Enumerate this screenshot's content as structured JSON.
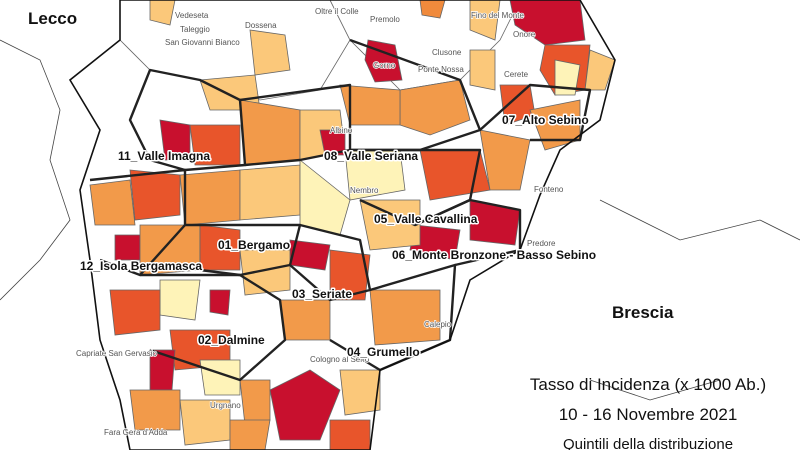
{
  "regions": [
    "Lecco",
    "Brescia"
  ],
  "districts": [
    "11_Valle Imagna",
    "08_Valle Seriana",
    "07_Alto Sebino",
    "05_Valle Cavallina",
    "01_Bergamo",
    "06_Monte Bronzone - Basso Sebino",
    "12_Isola Bergamasca",
    "03_Seriate",
    "02_Dalmine",
    "04_Grumello"
  ],
  "municipalities": [
    "Vedeseta",
    "Taleggio",
    "San Giovanni Bianco",
    "Dossena",
    "Oltre il Colle",
    "Gorno",
    "Premolo",
    "Clusone",
    "Ponte Nossa",
    "Onore",
    "Fino del Monte",
    "Cerete",
    "Albino",
    "Nembro",
    "Cologno al Serio",
    "Urgnano",
    "Fara Gera d'Adda",
    "Capriate San Gervasio",
    "Calepio",
    "Fonteno",
    "Predore"
  ],
  "legend": {
    "title": "Tasso di Incidenza (x 1000 Ab.)",
    "period": "10 - 16 Novembre 2021",
    "subtitle": "Quintili della distribuzione"
  }
}
